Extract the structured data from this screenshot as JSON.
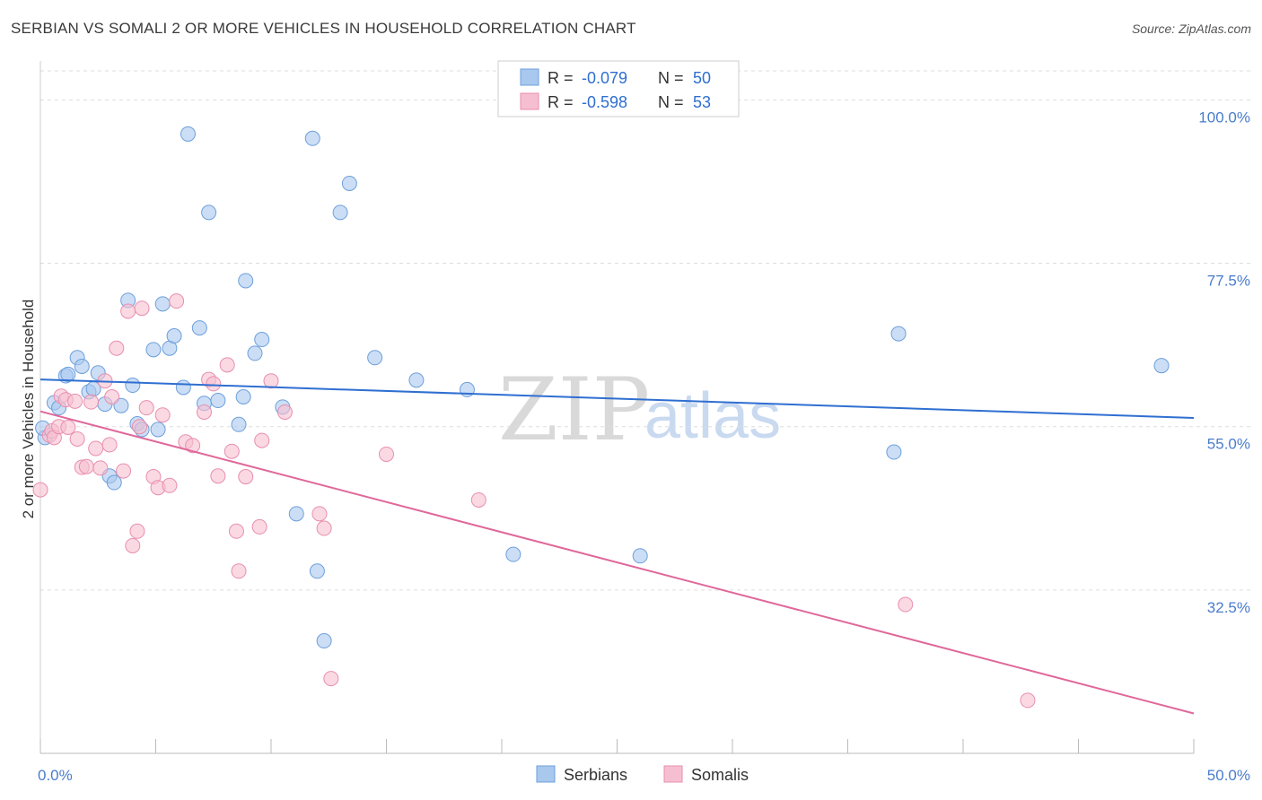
{
  "title": "SERBIAN VS SOMALI 2 OR MORE VEHICLES IN HOUSEHOLD CORRELATION CHART",
  "source": "Source: ZipAtlas.com",
  "watermark": {
    "zip": "ZIP",
    "atlas": "atlas"
  },
  "colors": {
    "serbian_fill": "#a9c8ee",
    "serbian_stroke": "#6d9fdc",
    "serbian_line": "#2f6fd1",
    "somali_fill": "#f6bfd1",
    "somali_stroke": "#e98eae",
    "somali_line": "#e0689a",
    "grid": "#dddddd",
    "axis_text": "#4a7ccc"
  },
  "stats": [
    {
      "label_r": "R = ",
      "r": "-0.079",
      "label_n": "N = ",
      "n": "50"
    },
    {
      "label_r": "R = ",
      "r": "-0.598",
      "label_n": "N = ",
      "n": "53"
    }
  ],
  "chart_data": {
    "type": "scatter",
    "xlabel": "",
    "ylabel": "2 or more Vehicles in Household",
    "xlim": [
      0,
      50
    ],
    "ylim": [
      10,
      104
    ],
    "y_ticks": [
      {
        "value": 100,
        "label": "100.0%"
      },
      {
        "value": 77.5,
        "label": "77.5%"
      },
      {
        "value": 55,
        "label": "55.0%"
      },
      {
        "value": 32.5,
        "label": "32.5%"
      }
    ],
    "x_tick_labels": [
      {
        "value": 0,
        "label": "0.0%"
      },
      {
        "value": 50,
        "label": "50.0%"
      }
    ],
    "x_minor_ticks": [
      0,
      5,
      10,
      15,
      20,
      25,
      30,
      35,
      40,
      45,
      50
    ],
    "series": [
      {
        "name": "Serbians",
        "trend": {
          "x": [
            0,
            50
          ],
          "y": [
            61.5,
            56.2
          ]
        },
        "points": [
          [
            0.2,
            53.5
          ],
          [
            0.6,
            58.3
          ],
          [
            0.8,
            57.6
          ],
          [
            1.1,
            62.0
          ],
          [
            1.2,
            62.2
          ],
          [
            1.6,
            64.5
          ],
          [
            1.8,
            63.3
          ],
          [
            2.1,
            59.8
          ],
          [
            2.3,
            60.2
          ],
          [
            2.5,
            62.4
          ],
          [
            2.8,
            58.1
          ],
          [
            3.0,
            48.2
          ],
          [
            3.2,
            47.3
          ],
          [
            3.5,
            57.9
          ],
          [
            3.8,
            72.4
          ],
          [
            4.0,
            60.7
          ],
          [
            4.2,
            55.4
          ],
          [
            4.4,
            54.6
          ],
          [
            4.9,
            65.6
          ],
          [
            5.1,
            54.6
          ],
          [
            5.3,
            71.9
          ],
          [
            5.6,
            65.8
          ],
          [
            5.8,
            67.5
          ],
          [
            6.2,
            60.4
          ],
          [
            6.4,
            95.3
          ],
          [
            6.9,
            68.6
          ],
          [
            7.1,
            58.2
          ],
          [
            7.3,
            84.5
          ],
          [
            7.7,
            58.6
          ],
          [
            8.6,
            55.3
          ],
          [
            8.8,
            59.1
          ],
          [
            8.9,
            75.1
          ],
          [
            9.3,
            65.1
          ],
          [
            9.6,
            67.0
          ],
          [
            10.5,
            57.7
          ],
          [
            11.1,
            43.0
          ],
          [
            11.8,
            94.7
          ],
          [
            12.0,
            35.1
          ],
          [
            12.3,
            25.5
          ],
          [
            13.0,
            84.5
          ],
          [
            13.4,
            88.5
          ],
          [
            14.5,
            64.5
          ],
          [
            16.3,
            61.4
          ],
          [
            18.5,
            60.1
          ],
          [
            20.5,
            37.4
          ],
          [
            26.0,
            37.2
          ],
          [
            37.0,
            51.5
          ],
          [
            37.2,
            67.8
          ],
          [
            48.6,
            63.4
          ],
          [
            0.1,
            54.8
          ]
        ]
      },
      {
        "name": "Somalis",
        "trend": {
          "x": [
            0,
            50
          ],
          "y": [
            57.1,
            15.5
          ]
        },
        "points": [
          [
            0.0,
            46.3
          ],
          [
            0.4,
            53.8
          ],
          [
            0.5,
            54.4
          ],
          [
            0.6,
            53.5
          ],
          [
            0.8,
            55.0
          ],
          [
            0.9,
            59.2
          ],
          [
            1.1,
            58.7
          ],
          [
            1.2,
            54.9
          ],
          [
            1.5,
            58.5
          ],
          [
            1.6,
            53.3
          ],
          [
            1.8,
            49.4
          ],
          [
            2.0,
            49.5
          ],
          [
            2.2,
            58.4
          ],
          [
            2.4,
            52.0
          ],
          [
            2.6,
            49.3
          ],
          [
            2.8,
            61.3
          ],
          [
            3.0,
            52.5
          ],
          [
            3.1,
            59.1
          ],
          [
            3.3,
            65.8
          ],
          [
            3.6,
            48.9
          ],
          [
            3.8,
            70.9
          ],
          [
            4.0,
            38.6
          ],
          [
            4.2,
            40.6
          ],
          [
            4.3,
            55.0
          ],
          [
            4.4,
            71.3
          ],
          [
            4.6,
            57.6
          ],
          [
            4.9,
            48.1
          ],
          [
            5.1,
            46.6
          ],
          [
            5.3,
            56.6
          ],
          [
            5.6,
            46.9
          ],
          [
            5.9,
            72.3
          ],
          [
            6.3,
            52.9
          ],
          [
            6.6,
            52.4
          ],
          [
            7.1,
            57.0
          ],
          [
            7.3,
            61.5
          ],
          [
            7.5,
            60.9
          ],
          [
            7.7,
            48.2
          ],
          [
            8.1,
            63.5
          ],
          [
            8.3,
            51.6
          ],
          [
            8.5,
            40.6
          ],
          [
            8.6,
            35.1
          ],
          [
            8.9,
            48.1
          ],
          [
            9.5,
            41.2
          ],
          [
            9.6,
            53.1
          ],
          [
            10.0,
            61.3
          ],
          [
            10.6,
            57.0
          ],
          [
            12.1,
            43.0
          ],
          [
            12.3,
            41.0
          ],
          [
            12.6,
            20.3
          ],
          [
            15.0,
            51.2
          ],
          [
            19.0,
            44.9
          ],
          [
            37.5,
            30.5
          ],
          [
            42.8,
            17.3
          ]
        ]
      }
    ]
  },
  "legend": {
    "items": [
      {
        "label": "Serbians"
      },
      {
        "label": "Somalis"
      }
    ]
  }
}
